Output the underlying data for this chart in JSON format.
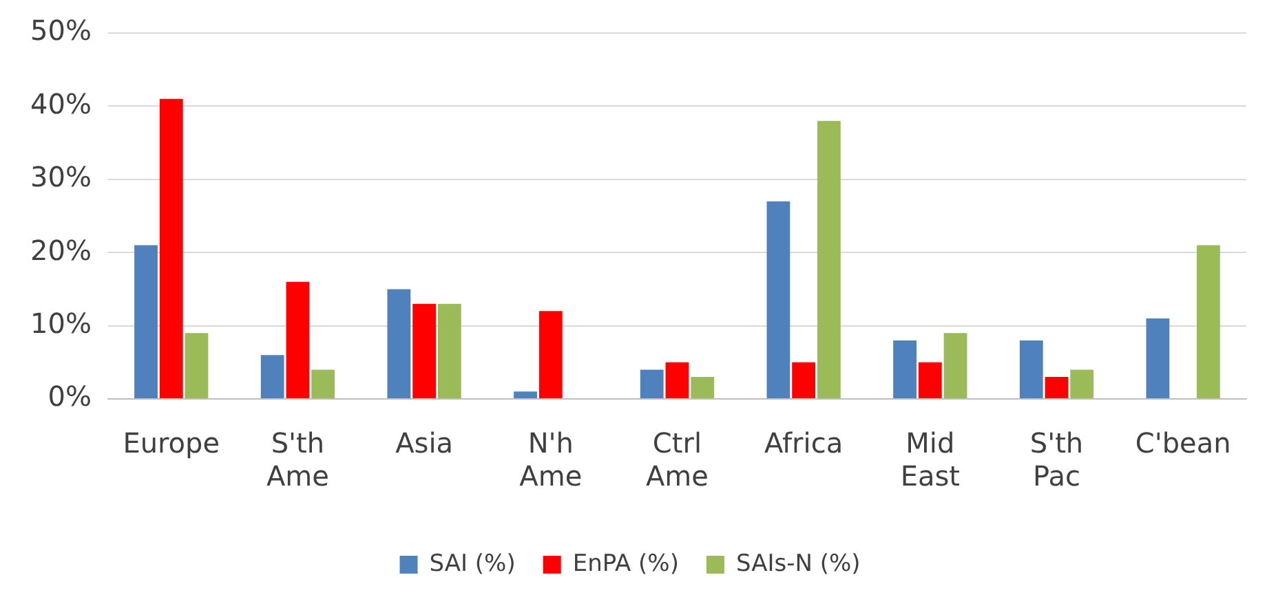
{
  "chart_data": {
    "type": "bar",
    "categories": [
      "Europe",
      "S'th Ame",
      "Asia",
      "N'h Ame",
      "Ctrl Ame",
      "Africa",
      "Mid East",
      "S'th Pac",
      "C'bean"
    ],
    "series": [
      {
        "name": "SAI (%)",
        "color": "#4f81bd",
        "values": [
          21,
          6,
          15,
          1,
          4,
          27,
          8,
          8,
          11
        ]
      },
      {
        "name": "EnPA (%)",
        "color": "#ff0000",
        "values": [
          41,
          16,
          13,
          12,
          5,
          5,
          5,
          3,
          0
        ]
      },
      {
        "name": "SAIs-N (%)",
        "color": "#9bbb59",
        "values": [
          9,
          4,
          13,
          0,
          3,
          38,
          9,
          4,
          21
        ]
      }
    ],
    "ylim": [
      0,
      50
    ],
    "yticks": [
      {
        "value": 0,
        "label": "0%"
      },
      {
        "value": 10,
        "label": "10%"
      },
      {
        "value": 20,
        "label": "20%"
      },
      {
        "value": 30,
        "label": "30%"
      },
      {
        "value": 40,
        "label": "40%"
      },
      {
        "value": 50,
        "label": "50%"
      }
    ],
    "grid": "y",
    "legend": "bottom"
  }
}
